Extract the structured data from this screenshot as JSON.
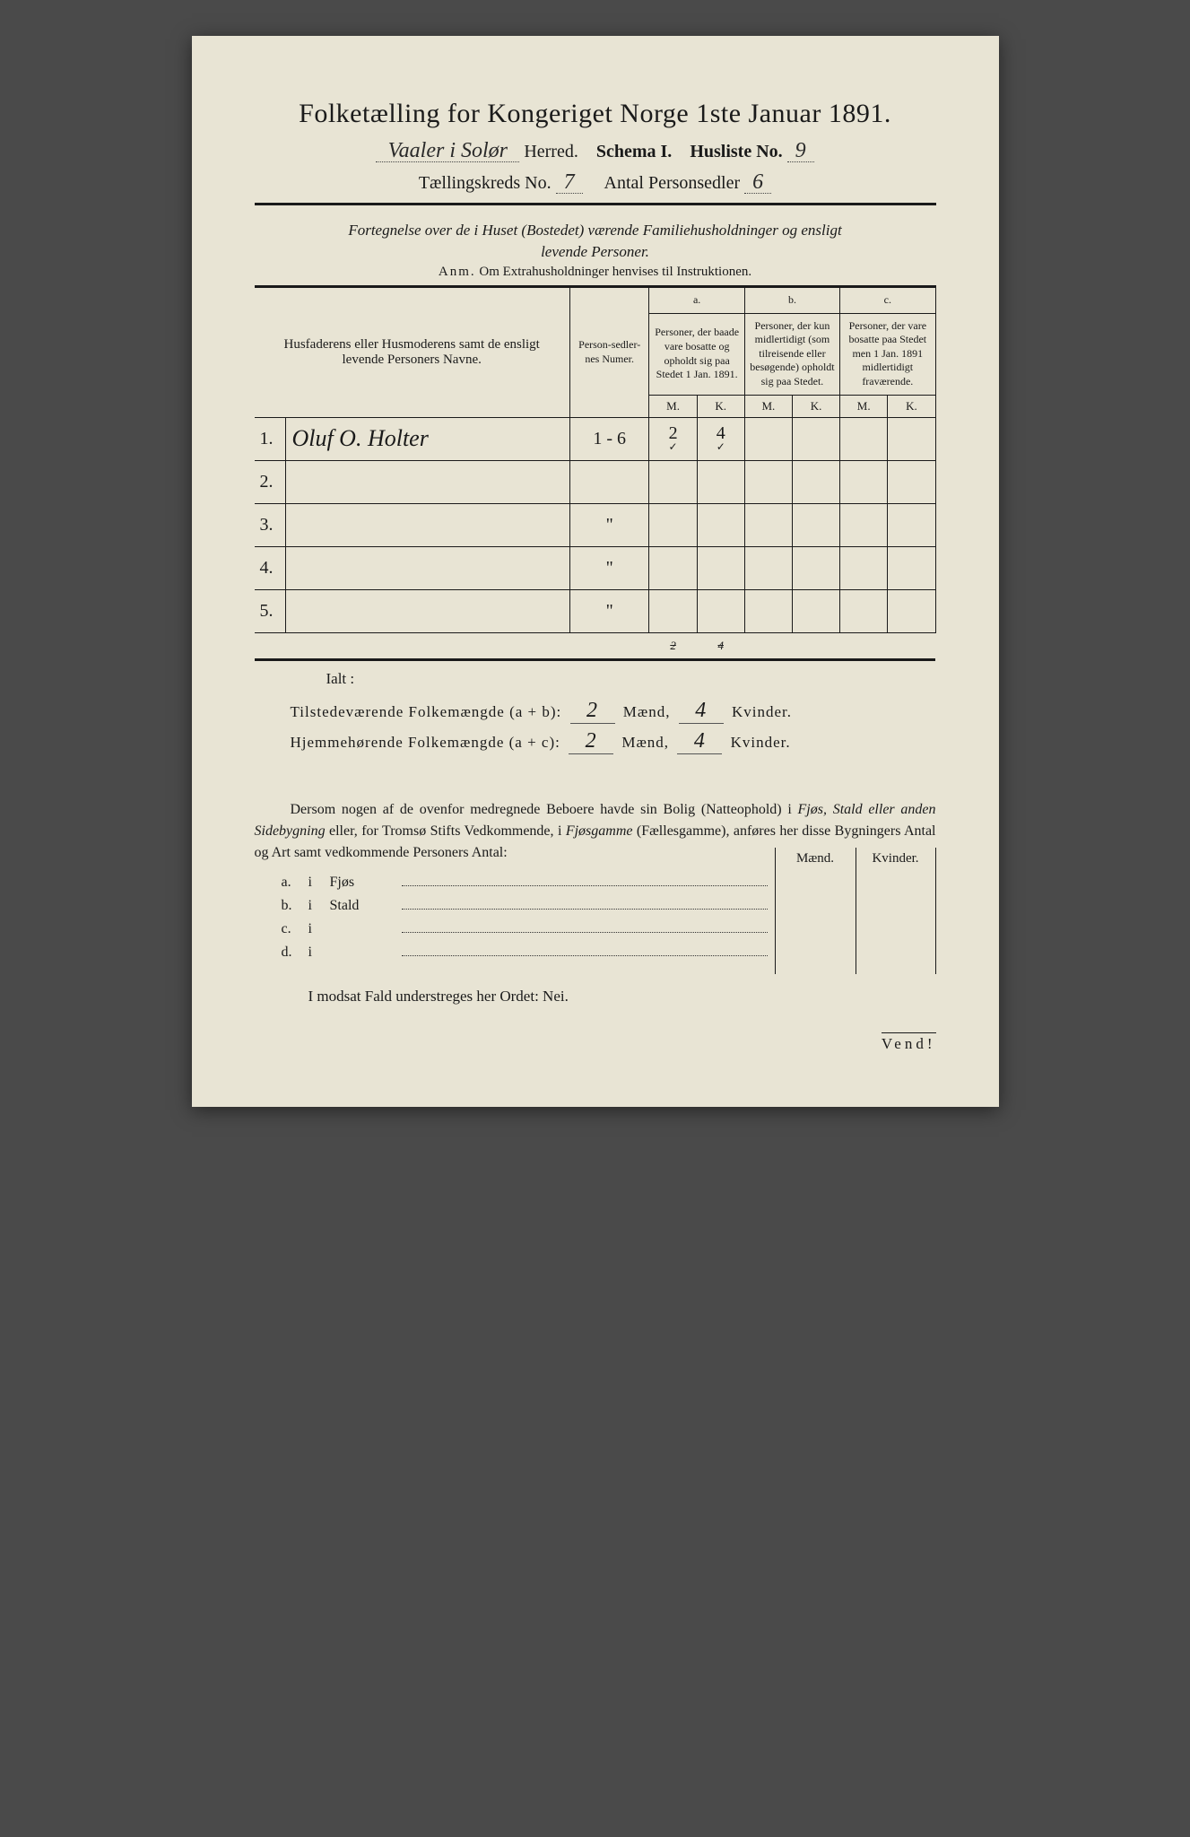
{
  "title": "Folketælling for Kongeriget Norge 1ste Januar 1891.",
  "header": {
    "herred_value": "Vaaler i Solør",
    "herred_label": "Herred.",
    "schema_label": "Schema I.",
    "husliste_label": "Husliste No.",
    "husliste_no": "9",
    "kreds_label": "Tællingskreds No.",
    "kreds_no": "7",
    "antal_label": "Antal Personsedler",
    "antal_val": "6"
  },
  "subtitle1": "Fortegnelse over de i Huset (Bostedet) værende Familiehusholdninger og ensligt",
  "subtitle2": "levende Personer.",
  "anm_label": "Anm.",
  "anm_text": "Om Extrahusholdninger henvises til Instruktionen.",
  "table": {
    "head_name": "Husfaderens eller Husmoderens samt de ensligt levende Personers Navne.",
    "head_num": "Person-sedler-nes Numer.",
    "col_a_label": "a.",
    "col_a": "Personer, der baade vare bosatte og opholdt sig paa Stedet 1 Jan. 1891.",
    "col_b_label": "b.",
    "col_b": "Personer, der kun midlertidigt (som tilreisende eller besøgende) opholdt sig paa Stedet.",
    "col_c_label": "c.",
    "col_c": "Personer, der vare bosatte paa Stedet men 1 Jan. 1891 midlertidigt fraværende.",
    "m": "M.",
    "k": "K.",
    "rows": [
      {
        "n": "1.",
        "name": "Oluf O. Holter",
        "num": "1 - 6",
        "am": "2",
        "ak": "4",
        "bm": "",
        "bk": "",
        "cm": "",
        "ck": ""
      },
      {
        "n": "2.",
        "name": "",
        "num": "",
        "am": "",
        "ak": "",
        "bm": "",
        "bk": "",
        "cm": "",
        "ck": ""
      },
      {
        "n": "3.",
        "name": "",
        "num": "\"",
        "am": "",
        "ak": "",
        "bm": "",
        "bk": "",
        "cm": "",
        "ck": ""
      },
      {
        "n": "4.",
        "name": "",
        "num": "\"",
        "am": "",
        "ak": "",
        "bm": "",
        "bk": "",
        "cm": "",
        "ck": ""
      },
      {
        "n": "5.",
        "name": "",
        "num": "\"",
        "am": "",
        "ak": "",
        "bm": "",
        "bk": "",
        "cm": "",
        "ck": ""
      }
    ],
    "totals": {
      "am": "2",
      "ak": "4"
    }
  },
  "ialt": "Ialt :",
  "summary": {
    "line1_a": "Tilstedeværende Folkemængde (a + b):",
    "line1_m": "2",
    "line1_mlabel": "Mænd,",
    "line1_k": "4",
    "line1_klabel": "Kvinder.",
    "line2_a": "Hjemmehørende Folkemængde (a + c):",
    "line2_m": "2",
    "line2_mlabel": "Mænd,",
    "line2_k": "4",
    "line2_klabel": "Kvinder."
  },
  "para": "Dersom nogen af de ovenfor medregnede Beboere havde sin Bolig (Natteophold) i Fjøs, Stald eller anden Sidebygning eller, for Tromsø Stifts Vedkommende, i Fjøsgamme (Fællesgamme), anføres her disse Bygningers Antal og Art samt vedkommende Personers Antal:",
  "mk_header": {
    "m": "Mænd.",
    "k": "Kvinder."
  },
  "abcd": [
    {
      "l": "a.",
      "i": "i",
      "cat": "Fjøs"
    },
    {
      "l": "b.",
      "i": "i",
      "cat": "Stald"
    },
    {
      "l": "c.",
      "i": "i",
      "cat": ""
    },
    {
      "l": "d.",
      "i": "i",
      "cat": ""
    }
  ],
  "nei": "I modsat Fald understreges her Ordet: Nei.",
  "vend": "Vend!",
  "colors": {
    "paper": "#e8e4d4",
    "ink": "#1a1a1a",
    "background": "#4a4a4a"
  }
}
